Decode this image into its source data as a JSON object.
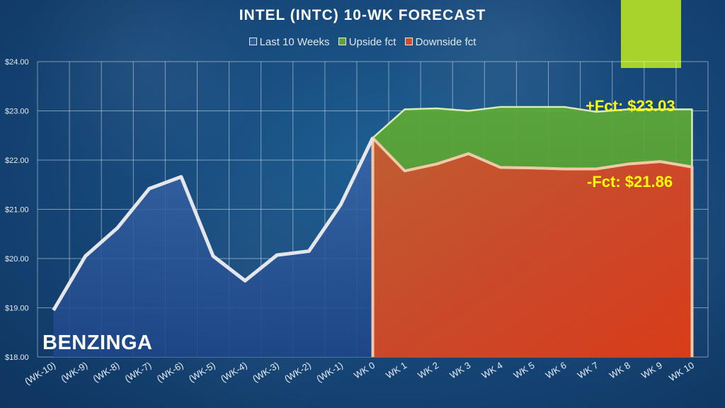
{
  "title": "INTEL (INTC) 10-WK FORECAST",
  "legend": [
    {
      "label": "Last 10 Weeks",
      "color": "#2d5aa0"
    },
    {
      "label": "Upside fct",
      "color": "#5ea23a"
    },
    {
      "label": "Downside fct",
      "color": "#d44a2a"
    }
  ],
  "callouts": {
    "upside": "+Fct: $23.03",
    "downside": "-Fct: $21.86"
  },
  "watermark": "BENZINGA",
  "accent_color": "#a8d32a",
  "chart_data": {
    "type": "area",
    "categories": [
      "(WK-10)",
      "(WK-9)",
      "(WK-8)",
      "(WK-7)",
      "(WK-6)",
      "(WK-5)",
      "(WK-4)",
      "(WK-3)",
      "(WK-2)",
      "(WK-1)",
      "WK 0",
      "WK 1",
      "WK 2",
      "WK 3",
      "WK 4",
      "WK 5",
      "WK 6",
      "WK 7",
      "WK 8",
      "WK 9",
      "WK 10"
    ],
    "yticks": [
      "$18.00",
      "$19.00",
      "$20.00",
      "$21.00",
      "$22.00",
      "$23.00",
      "$24.00"
    ],
    "ylim": [
      18,
      24
    ],
    "series": [
      {
        "name": "Last 10 Weeks",
        "color": "#2d5aa0",
        "values": [
          18.95,
          20.05,
          20.62,
          21.42,
          21.66,
          20.05,
          19.55,
          20.07,
          20.15,
          21.1,
          22.45,
          null,
          null,
          null,
          null,
          null,
          null,
          null,
          null,
          null,
          null
        ]
      },
      {
        "name": "Upside fct",
        "color": "#5ea23a",
        "values": [
          null,
          null,
          null,
          null,
          null,
          null,
          null,
          null,
          null,
          null,
          22.45,
          23.03,
          23.05,
          23.0,
          23.08,
          23.08,
          23.08,
          22.98,
          23.03,
          23.03,
          23.03
        ]
      },
      {
        "name": "Downside fct",
        "color": "#d44a2a",
        "values": [
          null,
          null,
          null,
          null,
          null,
          null,
          null,
          null,
          null,
          null,
          22.45,
          21.78,
          21.92,
          22.13,
          21.85,
          21.84,
          21.82,
          21.82,
          21.92,
          21.97,
          21.86
        ]
      }
    ]
  }
}
